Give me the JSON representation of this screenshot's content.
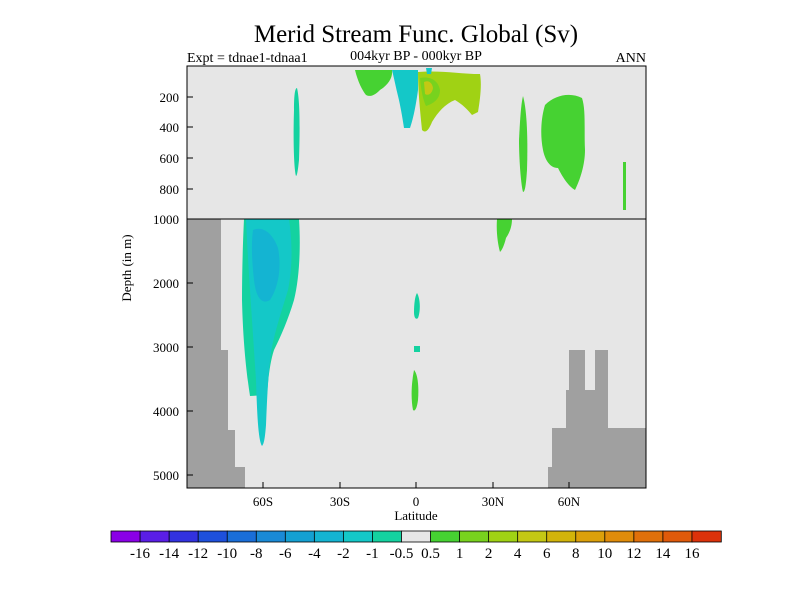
{
  "chart_data": {
    "type": "heatmap",
    "title": "Merid Stream Func. Global (Sv)",
    "left_label": "Expt = tdnae1-tdnaa1",
    "center_label": "004kyr BP - 000kyr BP",
    "right_label": "ANN",
    "xlabel": "Latitude",
    "ylabel": "Depth (in m)",
    "xlim": [
      -90,
      90
    ],
    "x_ticks": [
      {
        "value": -60,
        "label": "60S"
      },
      {
        "value": -30,
        "label": "30S"
      },
      {
        "value": 0,
        "label": "0"
      },
      {
        "value": 30,
        "label": "30N"
      },
      {
        "value": 60,
        "label": "60N"
      }
    ],
    "upper_panel": {
      "ylim": [
        0,
        1000
      ],
      "y_ticks": [
        {
          "value": 200,
          "label": "200"
        },
        {
          "value": 400,
          "label": "400"
        },
        {
          "value": 600,
          "label": "600"
        },
        {
          "value": 800,
          "label": "800"
        },
        {
          "value": 1000,
          "label": "1000"
        }
      ]
    },
    "lower_panel": {
      "ylim": [
        1000,
        5200
      ],
      "y_ticks": [
        {
          "value": 2000,
          "label": "2000"
        },
        {
          "value": 3000,
          "label": "3000"
        },
        {
          "value": 4000,
          "label": "4000"
        },
        {
          "value": 5000,
          "label": "5000"
        }
      ]
    },
    "missing_color": "#a0a0a0",
    "background_color": "#e6e6e6",
    "colorbar": {
      "levels": [
        "-16",
        "-14",
        "-12",
        "-10",
        "-8",
        "-6",
        "-4",
        "-2",
        "-1",
        "-0.5",
        "0.5",
        "1",
        "2",
        "4",
        "6",
        "8",
        "10",
        "12",
        "14",
        "16"
      ],
      "colors": [
        "#8a00e6",
        "#5a1ee6",
        "#3232e0",
        "#1e50dc",
        "#1a6ed8",
        "#1a8ad6",
        "#14a0d2",
        "#14b4d2",
        "#14c8c8",
        "#14d2a0",
        "#e6e6e6",
        "#46d232",
        "#78d21e",
        "#a0d214",
        "#c4c814",
        "#d2b40a",
        "#dca00a",
        "#e08c0a",
        "#e0700a",
        "#e05a0a",
        "#dc320a"
      ]
    },
    "regions": [
      {
        "name": "north-atlantic-green-upper",
        "value": 1,
        "lat": [
          40,
          64
        ],
        "depth": [
          100,
          850
        ]
      },
      {
        "name": "equatorial-yellow-green-upper",
        "value": 2,
        "lat": [
          2,
          25
        ],
        "depth": [
          0,
          320
        ]
      },
      {
        "name": "tropical-cyan-upper",
        "value": -1,
        "lat": [
          -9,
          2
        ],
        "depth": [
          0,
          320
        ]
      },
      {
        "name": "southern-ocean-cyan-cell",
        "value": -2,
        "lat": [
          -67,
          -45
        ],
        "depth": [
          1000,
          4600
        ]
      },
      {
        "name": "southern-ocean-teal-cell",
        "value": -0.5,
        "lat": [
          -68,
          -44
        ],
        "depth": [
          1000,
          4200
        ]
      }
    ],
    "bathymetry": [
      {
        "lat": [
          -90,
          -78
        ],
        "depth": [
          1000,
          5200
        ]
      },
      {
        "lat": [
          -78,
          -74
        ],
        "depth": [
          3000,
          5200
        ]
      }
    ]
  }
}
